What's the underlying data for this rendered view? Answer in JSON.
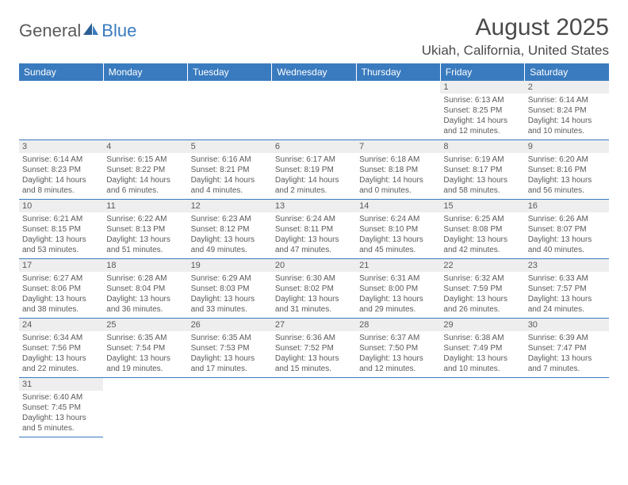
{
  "logo": {
    "part1": "General",
    "part2": "Blue"
  },
  "title": "August 2025",
  "location": "Ukiah, California, United States",
  "colors": {
    "header_bg": "#3a7bbf",
    "header_text": "#ffffff",
    "daynum_bg": "#eeeeee",
    "text": "#5a5a5a",
    "rule": "#3a7bbf"
  },
  "dow": [
    "Sunday",
    "Monday",
    "Tuesday",
    "Wednesday",
    "Thursday",
    "Friday",
    "Saturday"
  ],
  "weeks": [
    [
      null,
      null,
      null,
      null,
      null,
      {
        "n": "1",
        "sr": "Sunrise: 6:13 AM",
        "ss": "Sunset: 8:25 PM",
        "dl": "Daylight: 14 hours and 12 minutes."
      },
      {
        "n": "2",
        "sr": "Sunrise: 6:14 AM",
        "ss": "Sunset: 8:24 PM",
        "dl": "Daylight: 14 hours and 10 minutes."
      }
    ],
    [
      {
        "n": "3",
        "sr": "Sunrise: 6:14 AM",
        "ss": "Sunset: 8:23 PM",
        "dl": "Daylight: 14 hours and 8 minutes."
      },
      {
        "n": "4",
        "sr": "Sunrise: 6:15 AM",
        "ss": "Sunset: 8:22 PM",
        "dl": "Daylight: 14 hours and 6 minutes."
      },
      {
        "n": "5",
        "sr": "Sunrise: 6:16 AM",
        "ss": "Sunset: 8:21 PM",
        "dl": "Daylight: 14 hours and 4 minutes."
      },
      {
        "n": "6",
        "sr": "Sunrise: 6:17 AM",
        "ss": "Sunset: 8:19 PM",
        "dl": "Daylight: 14 hours and 2 minutes."
      },
      {
        "n": "7",
        "sr": "Sunrise: 6:18 AM",
        "ss": "Sunset: 8:18 PM",
        "dl": "Daylight: 14 hours and 0 minutes."
      },
      {
        "n": "8",
        "sr": "Sunrise: 6:19 AM",
        "ss": "Sunset: 8:17 PM",
        "dl": "Daylight: 13 hours and 58 minutes."
      },
      {
        "n": "9",
        "sr": "Sunrise: 6:20 AM",
        "ss": "Sunset: 8:16 PM",
        "dl": "Daylight: 13 hours and 56 minutes."
      }
    ],
    [
      {
        "n": "10",
        "sr": "Sunrise: 6:21 AM",
        "ss": "Sunset: 8:15 PM",
        "dl": "Daylight: 13 hours and 53 minutes."
      },
      {
        "n": "11",
        "sr": "Sunrise: 6:22 AM",
        "ss": "Sunset: 8:13 PM",
        "dl": "Daylight: 13 hours and 51 minutes."
      },
      {
        "n": "12",
        "sr": "Sunrise: 6:23 AM",
        "ss": "Sunset: 8:12 PM",
        "dl": "Daylight: 13 hours and 49 minutes."
      },
      {
        "n": "13",
        "sr": "Sunrise: 6:24 AM",
        "ss": "Sunset: 8:11 PM",
        "dl": "Daylight: 13 hours and 47 minutes."
      },
      {
        "n": "14",
        "sr": "Sunrise: 6:24 AM",
        "ss": "Sunset: 8:10 PM",
        "dl": "Daylight: 13 hours and 45 minutes."
      },
      {
        "n": "15",
        "sr": "Sunrise: 6:25 AM",
        "ss": "Sunset: 8:08 PM",
        "dl": "Daylight: 13 hours and 42 minutes."
      },
      {
        "n": "16",
        "sr": "Sunrise: 6:26 AM",
        "ss": "Sunset: 8:07 PM",
        "dl": "Daylight: 13 hours and 40 minutes."
      }
    ],
    [
      {
        "n": "17",
        "sr": "Sunrise: 6:27 AM",
        "ss": "Sunset: 8:06 PM",
        "dl": "Daylight: 13 hours and 38 minutes."
      },
      {
        "n": "18",
        "sr": "Sunrise: 6:28 AM",
        "ss": "Sunset: 8:04 PM",
        "dl": "Daylight: 13 hours and 36 minutes."
      },
      {
        "n": "19",
        "sr": "Sunrise: 6:29 AM",
        "ss": "Sunset: 8:03 PM",
        "dl": "Daylight: 13 hours and 33 minutes."
      },
      {
        "n": "20",
        "sr": "Sunrise: 6:30 AM",
        "ss": "Sunset: 8:02 PM",
        "dl": "Daylight: 13 hours and 31 minutes."
      },
      {
        "n": "21",
        "sr": "Sunrise: 6:31 AM",
        "ss": "Sunset: 8:00 PM",
        "dl": "Daylight: 13 hours and 29 minutes."
      },
      {
        "n": "22",
        "sr": "Sunrise: 6:32 AM",
        "ss": "Sunset: 7:59 PM",
        "dl": "Daylight: 13 hours and 26 minutes."
      },
      {
        "n": "23",
        "sr": "Sunrise: 6:33 AM",
        "ss": "Sunset: 7:57 PM",
        "dl": "Daylight: 13 hours and 24 minutes."
      }
    ],
    [
      {
        "n": "24",
        "sr": "Sunrise: 6:34 AM",
        "ss": "Sunset: 7:56 PM",
        "dl": "Daylight: 13 hours and 22 minutes."
      },
      {
        "n": "25",
        "sr": "Sunrise: 6:35 AM",
        "ss": "Sunset: 7:54 PM",
        "dl": "Daylight: 13 hours and 19 minutes."
      },
      {
        "n": "26",
        "sr": "Sunrise: 6:35 AM",
        "ss": "Sunset: 7:53 PM",
        "dl": "Daylight: 13 hours and 17 minutes."
      },
      {
        "n": "27",
        "sr": "Sunrise: 6:36 AM",
        "ss": "Sunset: 7:52 PM",
        "dl": "Daylight: 13 hours and 15 minutes."
      },
      {
        "n": "28",
        "sr": "Sunrise: 6:37 AM",
        "ss": "Sunset: 7:50 PM",
        "dl": "Daylight: 13 hours and 12 minutes."
      },
      {
        "n": "29",
        "sr": "Sunrise: 6:38 AM",
        "ss": "Sunset: 7:49 PM",
        "dl": "Daylight: 13 hours and 10 minutes."
      },
      {
        "n": "30",
        "sr": "Sunrise: 6:39 AM",
        "ss": "Sunset: 7:47 PM",
        "dl": "Daylight: 13 hours and 7 minutes."
      }
    ],
    [
      {
        "n": "31",
        "sr": "Sunrise: 6:40 AM",
        "ss": "Sunset: 7:45 PM",
        "dl": "Daylight: 13 hours and 5 minutes."
      },
      null,
      null,
      null,
      null,
      null,
      null
    ]
  ]
}
